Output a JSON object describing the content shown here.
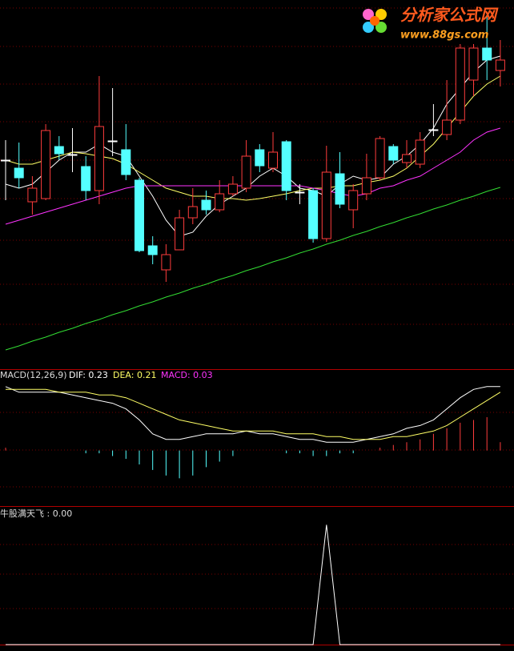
{
  "watermark": {
    "title": "分析家公式网",
    "url": "www.88gs.com"
  },
  "chart_data": [
    {
      "type": "candlestick",
      "ylim": [
        0,
        460
      ],
      "up_color": "#ff3c3c",
      "down_color": "#54ffff",
      "flat_color": "#ffffff",
      "open": [
        260,
        250,
        208,
        212,
        277,
        267,
        252,
        222,
        284,
        273,
        235,
        153,
        123,
        148,
        188,
        210,
        198,
        218,
        225,
        273,
        250,
        283,
        220,
        222,
        162,
        243,
        198,
        218,
        238,
        277,
        257,
        255,
        298,
        292,
        310,
        360,
        400,
        372
      ],
      "close": [
        260,
        238,
        225,
        297,
        268,
        267,
        222,
        302,
        284,
        242,
        147,
        142,
        142,
        188,
        202,
        198,
        218,
        230,
        265,
        253,
        270,
        222,
        220,
        162,
        245,
        205,
        222,
        238,
        287,
        260,
        267,
        285,
        298,
        310,
        400,
        400,
        385,
        385
      ],
      "high": [
        285,
        282,
        240,
        305,
        290,
        300,
        265,
        365,
        350,
        305,
        238,
        165,
        155,
        198,
        225,
        222,
        235,
        240,
        285,
        280,
        295,
        285,
        230,
        225,
        278,
        270,
        230,
        268,
        290,
        280,
        285,
        295,
        330,
        360,
        405,
        405,
        440,
        410
      ],
      "low": [
        210,
        225,
        192,
        210,
        260,
        245,
        210,
        205,
        265,
        235,
        145,
        130,
        108,
        148,
        180,
        192,
        195,
        215,
        220,
        245,
        245,
        210,
        205,
        157,
        158,
        200,
        175,
        210,
        235,
        255,
        250,
        250,
        290,
        285,
        305,
        340,
        360,
        352
      ],
      "series": [
        {
          "name": "MA5",
          "color": "#ffffff",
          "values": [
            230,
            225,
            230,
            245,
            260,
            270,
            270,
            280,
            270,
            265,
            240,
            215,
            185,
            165,
            170,
            190,
            205,
            215,
            225,
            240,
            250,
            240,
            225,
            222,
            215,
            230,
            240,
            235,
            238,
            255,
            265,
            280,
            300,
            330,
            350,
            370,
            385,
            390
          ]
        },
        {
          "name": "MA10",
          "color": "#ffff66",
          "values": [
            260,
            255,
            255,
            260,
            265,
            270,
            268,
            265,
            262,
            255,
            245,
            235,
            225,
            220,
            215,
            215,
            212,
            212,
            210,
            212,
            215,
            218,
            222,
            225,
            225,
            228,
            228,
            232,
            235,
            240,
            250,
            265,
            280,
            300,
            320,
            340,
            355,
            365
          ]
        },
        {
          "name": "MA30",
          "color": "#ff33ff",
          "values": [
            180,
            185,
            190,
            195,
            200,
            205,
            210,
            215,
            220,
            225,
            228,
            228,
            228,
            228,
            228,
            228,
            228,
            228,
            228,
            228,
            228,
            228,
            228,
            225,
            222,
            218,
            215,
            218,
            225,
            228,
            235,
            240,
            250,
            260,
            270,
            285,
            295,
            300
          ]
        },
        {
          "name": "MA60",
          "color": "#33dd33",
          "values": [
            23,
            28,
            34,
            39,
            45,
            50,
            56,
            61,
            67,
            72,
            78,
            83,
            89,
            94,
            100,
            105,
            111,
            116,
            122,
            127,
            133,
            138,
            144,
            149,
            155,
            160,
            166,
            171,
            177,
            182,
            188,
            193,
            199,
            204,
            210,
            215,
            221,
            226
          ]
        }
      ]
    },
    {
      "type": "macd",
      "title": "MACD(12,26,9)",
      "dif_label": "DIF: 0.23",
      "dea_label": "DEA: 0.21",
      "macd_label": "MACD: 0.03",
      "ylim": [
        -0.2,
        0.29
      ],
      "up_color": "#ff3c3c",
      "down_color": "#54ffff",
      "series": [
        {
          "name": "DIF",
          "color": "#ffffff",
          "values": [
            0.23,
            0.21,
            0.21,
            0.21,
            0.21,
            0.2,
            0.19,
            0.18,
            0.17,
            0.15,
            0.11,
            0.06,
            0.04,
            0.04,
            0.05,
            0.06,
            0.06,
            0.06,
            0.07,
            0.06,
            0.06,
            0.05,
            0.04,
            0.04,
            0.03,
            0.03,
            0.03,
            0.04,
            0.05,
            0.06,
            0.08,
            0.09,
            0.11,
            0.15,
            0.19,
            0.22,
            0.23,
            0.23
          ]
        },
        {
          "name": "DEA",
          "color": "#ffff66",
          "values": [
            0.22,
            0.22,
            0.22,
            0.22,
            0.21,
            0.21,
            0.21,
            0.2,
            0.2,
            0.19,
            0.17,
            0.15,
            0.13,
            0.11,
            0.1,
            0.09,
            0.08,
            0.07,
            0.07,
            0.07,
            0.07,
            0.06,
            0.06,
            0.06,
            0.05,
            0.05,
            0.04,
            0.04,
            0.04,
            0.05,
            0.05,
            0.06,
            0.07,
            0.09,
            0.12,
            0.15,
            0.18,
            0.21
          ]
        }
      ],
      "values": [
        0.01,
        0,
        0,
        0,
        0,
        0,
        -0.01,
        -0.01,
        -0.02,
        -0.03,
        -0.05,
        -0.07,
        -0.09,
        -0.1,
        -0.09,
        -0.06,
        -0.04,
        -0.02,
        0,
        0,
        0,
        -0.01,
        -0.01,
        -0.02,
        -0.02,
        -0.01,
        -0.01,
        0,
        0.01,
        0.02,
        0.03,
        0.04,
        0.06,
        0.08,
        0.1,
        0.11,
        0.12,
        0.03
      ]
    },
    {
      "type": "line",
      "title": "牛股满天飞 : 0.00",
      "ylim": [
        0,
        1.15
      ],
      "color": "#ffffff",
      "values": [
        0,
        0,
        0,
        0,
        0,
        0,
        0,
        0,
        0,
        0,
        0,
        0,
        0,
        0,
        0,
        0,
        0,
        0,
        0,
        0,
        0,
        0,
        0,
        0,
        1,
        0,
        0,
        0,
        0,
        0,
        0,
        0,
        0,
        0,
        0,
        0,
        0,
        0
      ]
    }
  ]
}
